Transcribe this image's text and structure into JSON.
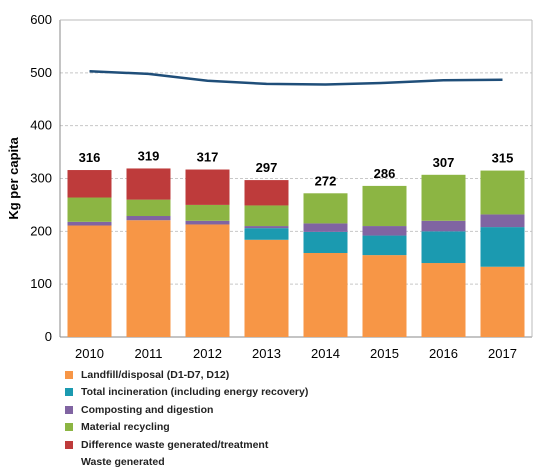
{
  "chart_data": {
    "type": "bar",
    "stacked": true,
    "categories": [
      "2010",
      "2011",
      "2012",
      "2013",
      "2014",
      "2015",
      "2016",
      "2017"
    ],
    "ylabel": "Kg per capita",
    "ylim": [
      0,
      600
    ],
    "yticks": [
      0,
      100,
      200,
      300,
      400,
      500,
      600
    ],
    "grid": true,
    "legend_position": "bottom",
    "series": [
      {
        "name": "Landfill/disposal (D1-D7, D12)",
        "color": "#F79646",
        "values": [
          211,
          221,
          213,
          184,
          159,
          155,
          140,
          133
        ]
      },
      {
        "name": "Total incineration (including energy recovery)",
        "color": "#1B9AB0",
        "values": [
          0,
          0,
          0,
          22,
          40,
          37,
          60,
          75
        ]
      },
      {
        "name": "Composting and digestion",
        "color": "#8064A2",
        "values": [
          7,
          8,
          7,
          4,
          16,
          18,
          20,
          24
        ]
      },
      {
        "name": "Material recycling",
        "color": "#8CB543",
        "values": [
          46,
          31,
          30,
          39,
          57,
          76,
          87,
          83
        ]
      },
      {
        "name": "Difference waste generated/treatment",
        "color": "#BE3B3B",
        "values": [
          52,
          59,
          67,
          48,
          0,
          0,
          0,
          0
        ]
      }
    ],
    "totals": [
      "316",
      "319",
      "317",
      "297",
      "272",
      "286",
      "307",
      "315"
    ],
    "line_series": {
      "name": "Waste generated",
      "color": "#1F4E79",
      "values": [
        503,
        498,
        485,
        479,
        478,
        481,
        486,
        487
      ]
    }
  }
}
